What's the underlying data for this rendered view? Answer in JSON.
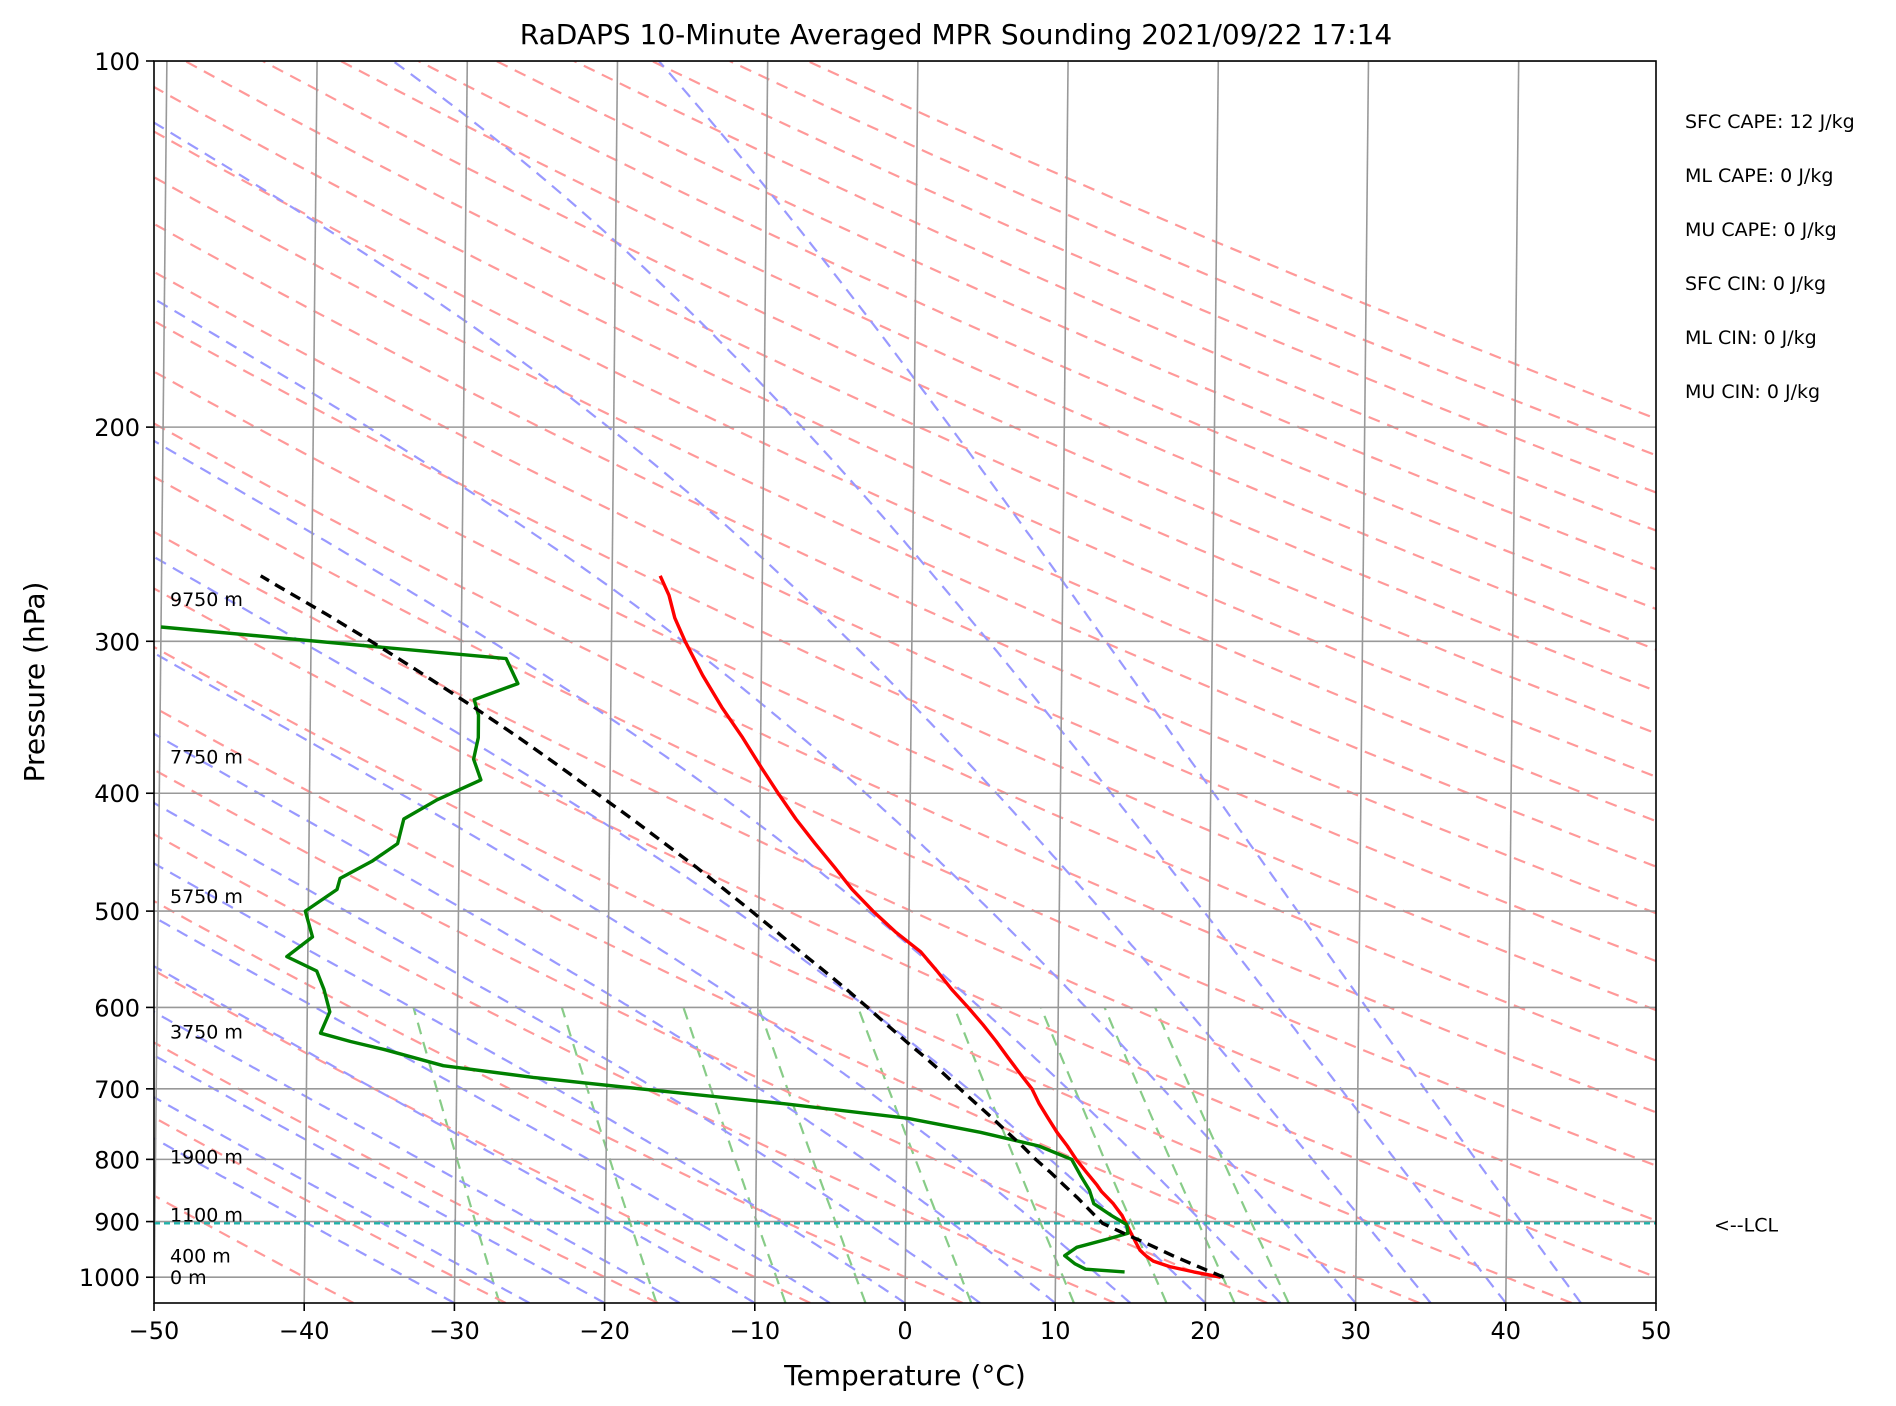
{
  "chart_data": {
    "type": "line",
    "subtype": "skew-t log-p sounding",
    "title": "RaDAPS 10-Minute Averaged MPR Sounding 2021/09/22 17:14",
    "xlabel": "Temperature (°C)",
    "ylabel": "Pressure (hPa)",
    "xlim": [
      -50,
      50
    ],
    "ylim": [
      1050,
      100
    ],
    "y_scale": "log",
    "grid": true,
    "x_ticks": [
      -50,
      -40,
      -30,
      -20,
      -10,
      0,
      10,
      20,
      30,
      40,
      50
    ],
    "x_tick_labels": [
      "−50",
      "−40",
      "−30",
      "−20",
      "−10",
      "0",
      "10",
      "20",
      "30",
      "40",
      "50"
    ],
    "y_ticks": [
      1000,
      900,
      800,
      700,
      600,
      500,
      400,
      300,
      200,
      100
    ],
    "y_tick_labels": [
      "1000",
      "900",
      "800",
      "700",
      "600",
      "500",
      "400",
      "300",
      "200",
      "100"
    ],
    "colors": {
      "temperature": "#ff0000",
      "dewpoint": "#008000",
      "parcel": "#000000",
      "dry_adiabat": "#ff9999",
      "moist_adiabat": "#9999ff",
      "mixing_ratio": "#88cc88",
      "isotherm": "#999999",
      "lcl": "#20b2aa"
    },
    "series": [
      {
        "role": "temperature",
        "p": [
          1000,
          990,
          980,
          970,
          960,
          950,
          940,
          930,
          920,
          910,
          900,
          890,
          880,
          870,
          860,
          850,
          840,
          820,
          800,
          780,
          760,
          740,
          720,
          700,
          680,
          660,
          640,
          620,
          600,
          580,
          560,
          540,
          520,
          500,
          480,
          460,
          440,
          420,
          400,
          380,
          360,
          340,
          320,
          300,
          287,
          275,
          265
        ],
        "t": [
          21.0,
          19.2,
          17.6,
          16.5,
          16.0,
          15.6,
          15.4,
          15.2,
          15.0,
          14.8,
          14.6,
          14.4,
          14.1,
          13.8,
          13.4,
          13.0,
          12.7,
          12.0,
          11.3,
          10.7,
          10.0,
          9.4,
          8.8,
          8.3,
          7.5,
          6.7,
          5.9,
          5.0,
          4.0,
          2.9,
          1.9,
          0.8,
          -0.9,
          -2.4,
          -3.8,
          -5.0,
          -6.3,
          -7.6,
          -8.8,
          -10.0,
          -11.2,
          -12.6,
          -13.9,
          -15.1,
          -15.8,
          -16.2,
          -16.8
        ]
      },
      {
        "role": "dewpoint",
        "p": [
          990,
          985,
          975,
          960,
          945,
          930,
          920,
          905,
          890,
          870,
          848,
          825,
          800,
          780,
          760,
          740,
          720,
          700,
          685,
          670,
          650,
          640,
          630,
          605,
          580,
          560,
          545,
          525,
          500,
          480,
          470,
          455,
          440,
          420,
          405,
          390,
          375,
          360,
          345,
          335,
          325,
          310,
          292
        ],
        "td": [
          14.6,
          12.0,
          11.3,
          10.6,
          11.4,
          13.5,
          14.8,
          14.7,
          13.7,
          12.5,
          12.2,
          11.6,
          11.0,
          8.8,
          4.9,
          0.0,
          -8.2,
          -17.8,
          -24.9,
          -30.9,
          -34.8,
          -37.1,
          -39.1,
          -38.5,
          -38.9,
          -39.4,
          -41.4,
          -39.7,
          -40.2,
          -38.1,
          -37.9,
          -35.8,
          -34.1,
          -33.7,
          -31.5,
          -28.6,
          -29.1,
          -28.8,
          -28.8,
          -29.1,
          -26.2,
          -27.0,
          -50.0
        ]
      },
      {
        "role": "parcel",
        "p": [
          1000,
          980,
          960,
          940,
          920,
          903,
          880,
          860,
          840,
          820,
          800,
          780,
          760,
          740,
          720,
          700,
          680,
          660,
          640,
          620,
          600,
          580,
          560,
          540,
          520,
          500,
          480,
          460,
          440,
          420,
          400,
          380,
          360,
          340,
          320,
          300,
          285,
          270,
          265
        ],
        "t": [
          21.2,
          19.5,
          17.8,
          16.2,
          14.5,
          13.1,
          12.2,
          11.4,
          10.5,
          9.6,
          8.6,
          7.7,
          6.7,
          5.7,
          4.6,
          3.5,
          2.4,
          1.2,
          -0.1,
          -1.4,
          -2.7,
          -4.1,
          -5.6,
          -7.2,
          -8.8,
          -10.5,
          -12.3,
          -14.2,
          -16.3,
          -18.5,
          -20.9,
          -23.4,
          -26.1,
          -29.1,
          -32.4,
          -36.0,
          -39.0,
          -42.3,
          -43.4
        ]
      }
    ],
    "lcl": {
      "pressure": 903,
      "label": "<--LCL"
    },
    "height_labels": [
      {
        "text": "9750 m",
        "p": 277
      },
      {
        "text": "7750 m",
        "p": 373
      },
      {
        "text": "5750 m",
        "p": 486
      },
      {
        "text": "3750 m",
        "p": 628
      },
      {
        "text": "1900 m",
        "p": 796
      },
      {
        "text": "1100 m",
        "p": 888
      },
      {
        "text": "400 m",
        "p": 960
      },
      {
        "text": "0 m",
        "p": 1000
      }
    ],
    "indices": [
      "SFC CAPE: 12 J/kg",
      "ML CAPE: 0 J/kg",
      "MU CAPE: 0 J/kg",
      "SFC CIN: 0 J/kg",
      "ML CIN: 0 J/kg",
      "MU CIN: 0 J/kg"
    ]
  }
}
